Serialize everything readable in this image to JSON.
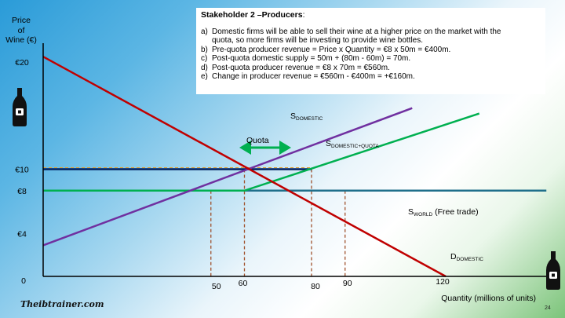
{
  "stakeholder": {
    "title": "Stakeholder 2 –Producers",
    "title_suffix": ":",
    "items": [
      {
        "marker": "a)",
        "lines": [
          "Domestic firms will be able to sell their wine at a higher price on the market with the",
          "quota, so more firms will be investing to provide wine bottles."
        ]
      },
      {
        "marker": "b)",
        "lines": [
          "Pre-quota producer revenue = Price x Quantity = €8 x 50m = €400m."
        ]
      },
      {
        "marker": "c)",
        "lines": [
          "Post-quota domestic supply = 50m + (80m - 60m) = 70m."
        ]
      },
      {
        "marker": "d)",
        "lines": [
          "Post-quota producer revenue = €8 x 70m = €560m."
        ]
      },
      {
        "marker": "e)",
        "lines": [
          "Change in producer revenue = €560m - €400m = +€160m."
        ]
      }
    ]
  },
  "axes": {
    "y_label_lines": [
      "Price",
      "of",
      "Wine (€)"
    ],
    "x_label": "Quantity (millions of units)",
    "origin": "0",
    "y_ticks": [
      {
        "value": 20,
        "label": "€20"
      },
      {
        "value": 10,
        "label": "€10"
      },
      {
        "value": 8,
        "label": "€8"
      },
      {
        "value": 4,
        "label": "€4"
      }
    ],
    "x_ticks": [
      {
        "value": 50,
        "label": "50"
      },
      {
        "value": 60,
        "label": "60"
      },
      {
        "value": 80,
        "label": "80"
      },
      {
        "value": 90,
        "label": "90"
      },
      {
        "value": 120,
        "label": "120"
      }
    ]
  },
  "curves": {
    "demand": {
      "label_main": "D",
      "label_sub": "DOMESTIC",
      "color": "#c00000",
      "from": [
        0,
        20.5
      ],
      "to": [
        120,
        0
      ]
    },
    "domestic_supply": {
      "label_main": "S",
      "label_sub": "DOMESTIC",
      "color": "#7030a0",
      "from": [
        0,
        2.9
      ],
      "to": [
        110,
        15.7
      ]
    },
    "supply_quota": {
      "label_main": "S",
      "label_sub": "DOMESTIC+QUOTA",
      "color": "#00b050",
      "from": [
        0,
        8
      ],
      "to": [
        60,
        8
      ],
      "to2": [
        130,
        15.2
      ]
    },
    "world_supply": {
      "label_main": "S",
      "label_sub": "WORLD",
      "label_suffix": " (Free trade)",
      "color": "#1f6f8b",
      "from": [
        60,
        8
      ],
      "to": [
        150,
        8
      ]
    },
    "price_line_10": {
      "color": "#002060",
      "from": [
        0,
        10
      ],
      "to": [
        80,
        10
      ]
    }
  },
  "quota_label": "Quota",
  "dashed_guides": [
    {
      "x": 50,
      "y": 8
    },
    {
      "x": 60,
      "y": 10
    },
    {
      "x": 80,
      "y": 10
    },
    {
      "x": 90,
      "y": 8
    }
  ],
  "footer": {
    "brand": "Theibtrainer.com",
    "page": "24"
  },
  "icons": [
    "wine-bottle-icon",
    "wine-bottle-icon"
  ]
}
